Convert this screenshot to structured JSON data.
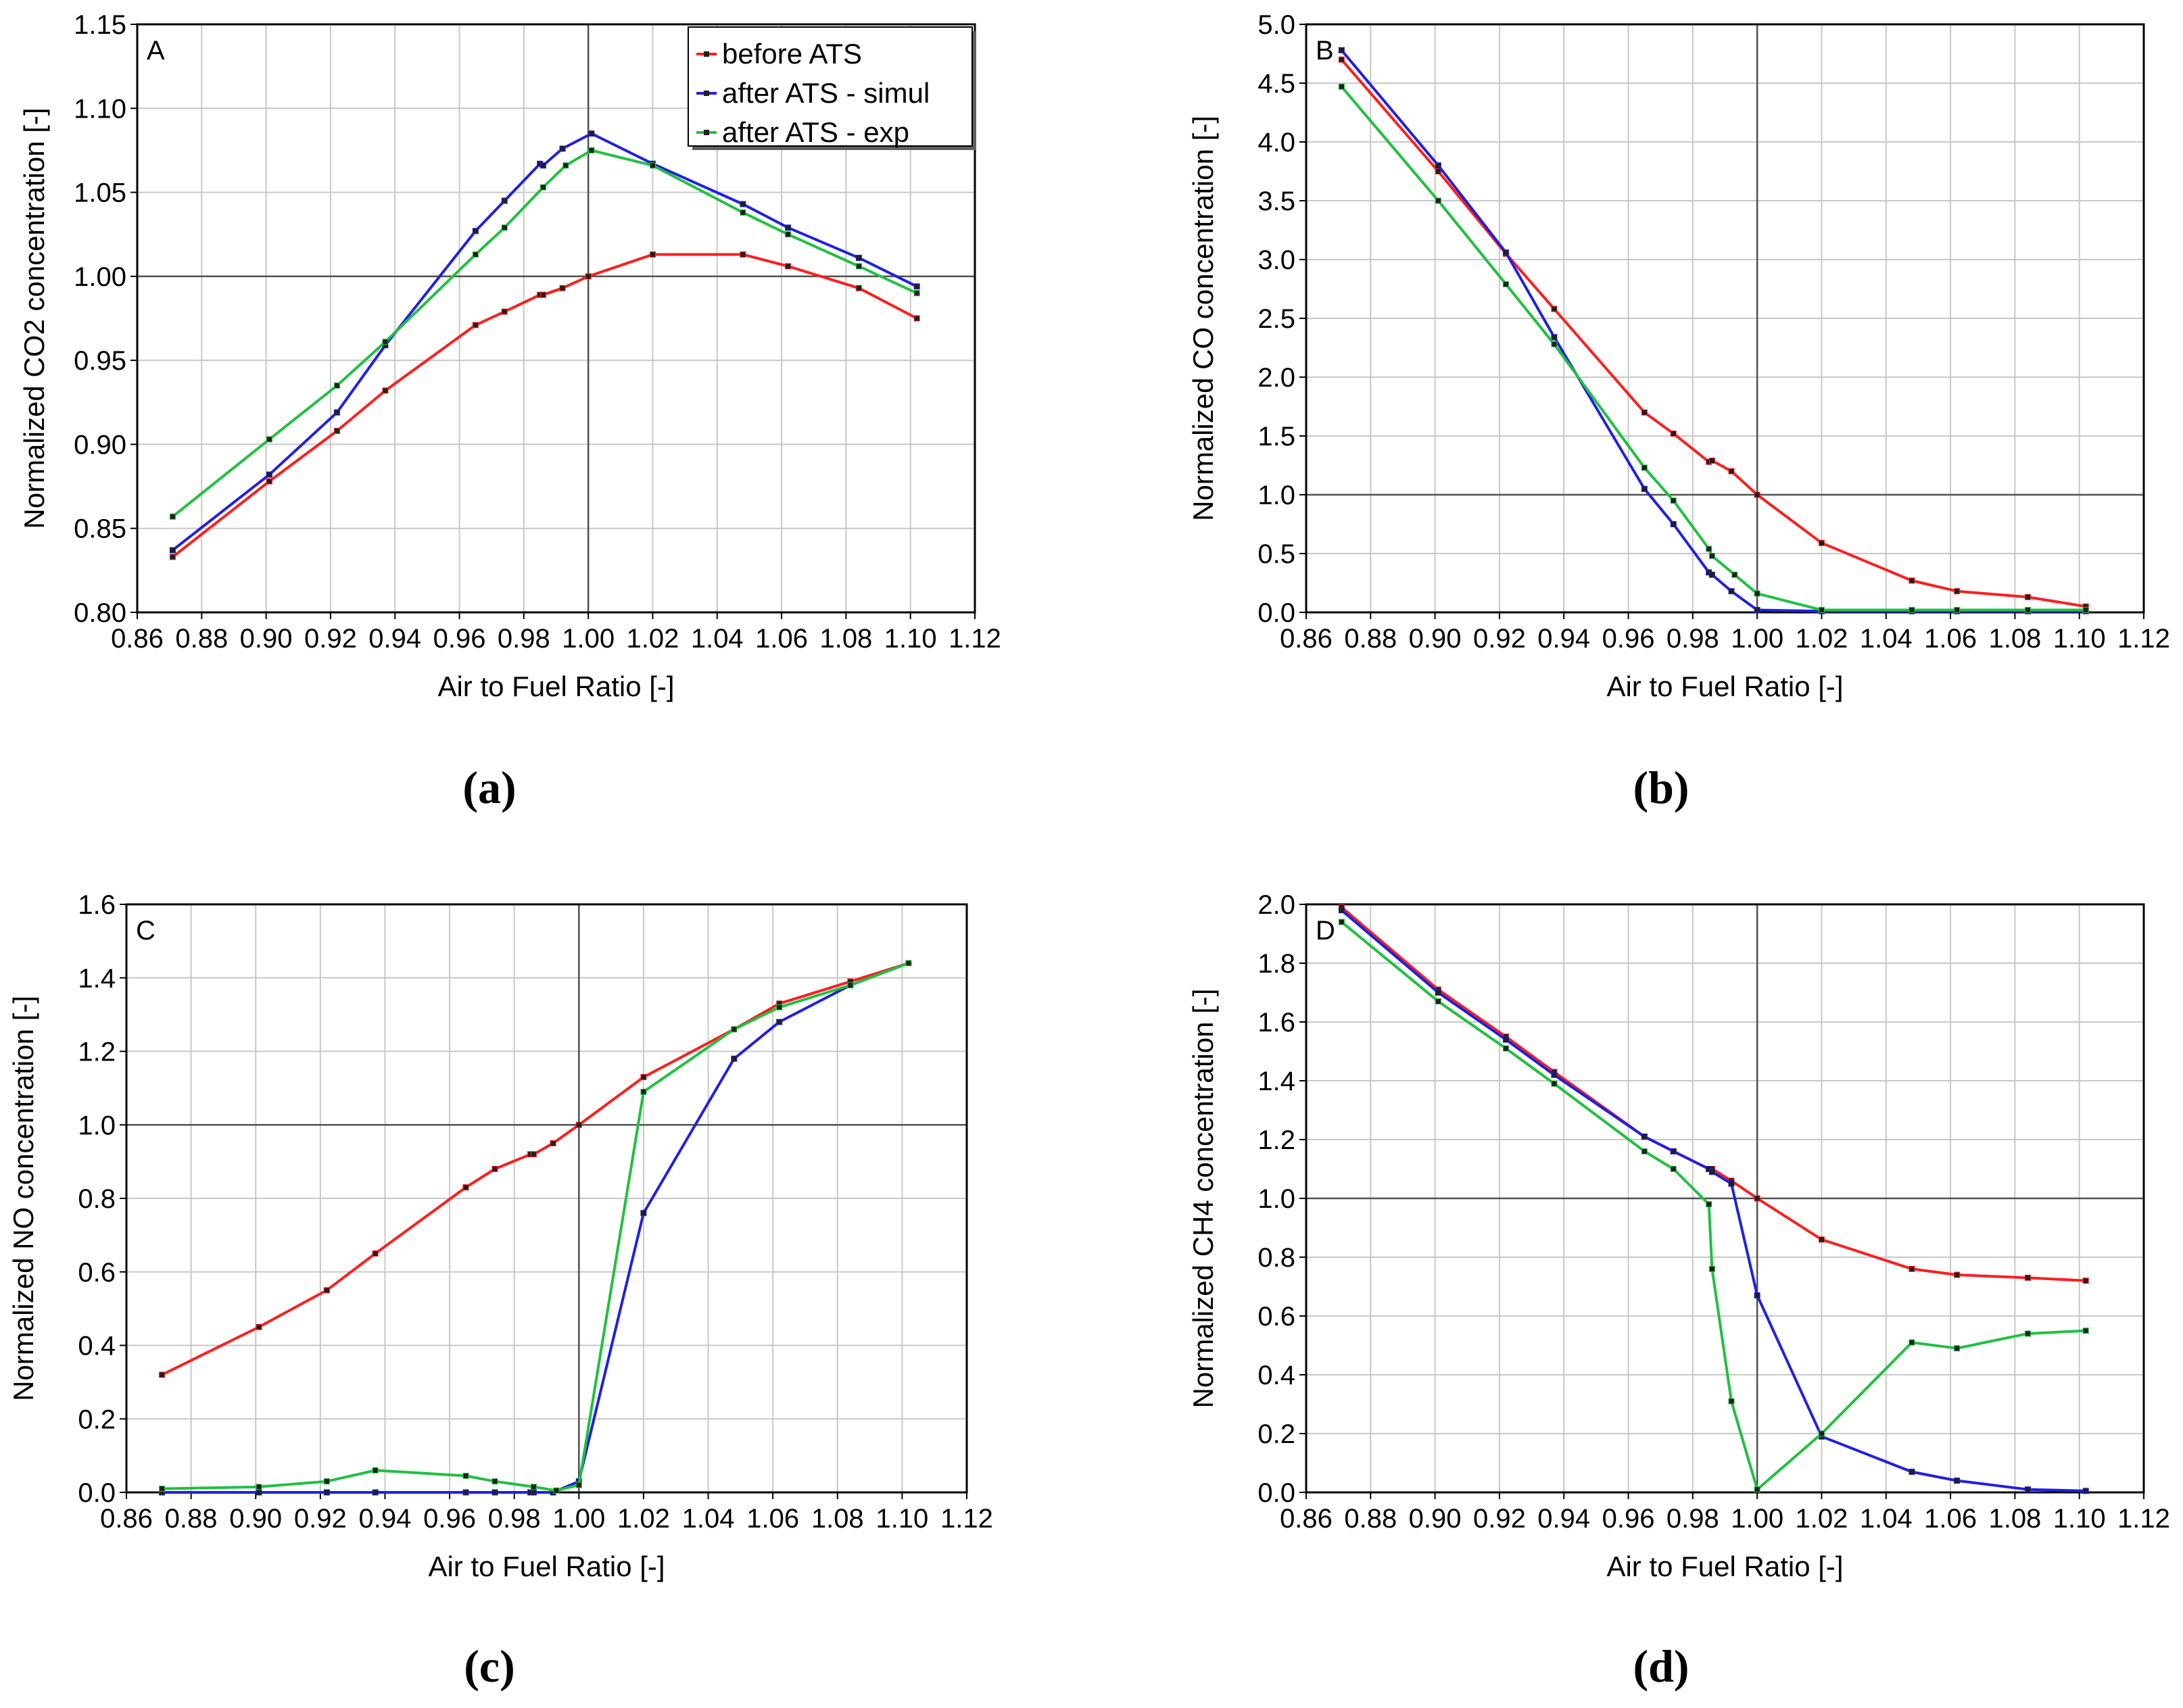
{
  "chart_data": [
    {
      "type": "line",
      "panel_letter": "A",
      "caption": "(a)",
      "xlabel": "Air to Fuel Ratio [-]",
      "ylabel": "Normalized CO2 concentration [-]",
      "xlim": [
        0.86,
        1.12
      ],
      "ylim": [
        0.8,
        1.15
      ],
      "xticks": [
        "0.86",
        "0.88",
        "0.90",
        "0.92",
        "0.94",
        "0.96",
        "0.98",
        "1.00",
        "1.02",
        "1.04",
        "1.06",
        "1.08",
        "1.10",
        "1.12"
      ],
      "yticks": [
        "0.80",
        "0.85",
        "0.90",
        "0.95",
        "1.00",
        "1.05",
        "1.10",
        "1.15"
      ],
      "ref_x": 1.0,
      "ref_y": 1.0,
      "grid": true,
      "legend_position": "top-right",
      "series": [
        {
          "name": "before ATS",
          "color": "#ff1e1e",
          "x": [
            0.871,
            0.901,
            0.922,
            0.937,
            0.965,
            0.974,
            0.985,
            0.986,
            0.992,
            1.0,
            1.02,
            1.048,
            1.062,
            1.084,
            1.102
          ],
          "y": [
            0.833,
            0.878,
            0.908,
            0.932,
            0.971,
            0.979,
            0.989,
            0.989,
            0.993,
            1.0,
            1.013,
            1.013,
            1.006,
            0.993,
            0.975
          ]
        },
        {
          "name": "after ATS - simul",
          "color": "#2020e0",
          "x": [
            0.871,
            0.901,
            0.922,
            0.937,
            0.965,
            0.974,
            0.985,
            0.986,
            0.992,
            1.001,
            1.02,
            1.048,
            1.062,
            1.084,
            1.102
          ],
          "y": [
            0.837,
            0.882,
            0.919,
            0.959,
            1.027,
            1.045,
            1.067,
            1.066,
            1.076,
            1.085,
            1.067,
            1.043,
            1.029,
            1.011,
            0.994
          ]
        },
        {
          "name": "after ATS - exp",
          "color": "#20c040",
          "x": [
            0.871,
            0.901,
            0.922,
            0.937,
            0.965,
            0.974,
            0.986,
            0.993,
            1.001,
            1.02,
            1.048,
            1.062,
            1.084,
            1.102
          ],
          "y": [
            0.857,
            0.903,
            0.935,
            0.961,
            1.013,
            1.029,
            1.053,
            1.066,
            1.075,
            1.066,
            1.038,
            1.025,
            1.006,
            0.99
          ]
        }
      ]
    },
    {
      "type": "line",
      "panel_letter": "B",
      "caption": "(b)",
      "xlabel": "Air to Fuel Ratio [-]",
      "ylabel": "Normalized CO concentration [-]",
      "xlim": [
        0.86,
        1.12
      ],
      "ylim": [
        0.0,
        5.0
      ],
      "xticks": [
        "0.86",
        "0.88",
        "0.90",
        "0.92",
        "0.94",
        "0.96",
        "0.98",
        "1.00",
        "1.02",
        "1.04",
        "1.06",
        "1.08",
        "1.10",
        "1.12"
      ],
      "yticks": [
        "0.0",
        "0.5",
        "1.0",
        "1.5",
        "2.0",
        "2.5",
        "3.0",
        "3.5",
        "4.0",
        "4.5",
        "5.0"
      ],
      "ref_x": 1.0,
      "ref_y": 1.0,
      "grid": true,
      "series": [
        {
          "name": "before ATS",
          "color": "#ff1e1e",
          "x": [
            0.871,
            0.901,
            0.922,
            0.937,
            0.965,
            0.974,
            0.985,
            0.986,
            0.992,
            1.0,
            1.02,
            1.048,
            1.062,
            1.084,
            1.102
          ],
          "y": [
            4.7,
            3.75,
            3.05,
            2.58,
            1.7,
            1.52,
            1.28,
            1.29,
            1.2,
            1.0,
            0.59,
            0.27,
            0.18,
            0.13,
            0.05
          ]
        },
        {
          "name": "after ATS - simul",
          "color": "#2020e0",
          "x": [
            0.871,
            0.901,
            0.922,
            0.937,
            0.965,
            0.974,
            0.985,
            0.986,
            0.992,
            1.0,
            1.02,
            1.048,
            1.062,
            1.084,
            1.102
          ],
          "y": [
            4.78,
            3.8,
            3.06,
            2.34,
            1.05,
            0.75,
            0.34,
            0.32,
            0.18,
            0.02,
            0.01,
            0.01,
            0.01,
            0.01,
            0.01
          ]
        },
        {
          "name": "after ATS - exp",
          "color": "#20c040",
          "x": [
            0.871,
            0.901,
            0.922,
            0.937,
            0.965,
            0.974,
            0.985,
            0.986,
            0.993,
            1.0,
            1.02,
            1.048,
            1.062,
            1.084,
            1.102
          ],
          "y": [
            4.47,
            3.5,
            2.79,
            2.28,
            1.23,
            0.95,
            0.54,
            0.48,
            0.32,
            0.16,
            0.02,
            0.02,
            0.02,
            0.02,
            0.02
          ]
        }
      ]
    },
    {
      "type": "line",
      "panel_letter": "C",
      "caption": "(c)",
      "xlabel": "Air to Fuel Ratio [-]",
      "ylabel": "Normalized NO concentration [-]",
      "xlim": [
        0.86,
        1.12
      ],
      "ylim": [
        0.0,
        1.6
      ],
      "xticks": [
        "0.86",
        "0.88",
        "0.90",
        "0.92",
        "0.94",
        "0.96",
        "0.98",
        "1.00",
        "1.02",
        "1.04",
        "1.06",
        "1.08",
        "1.10",
        "1.12"
      ],
      "yticks": [
        "0.0",
        "0.2",
        "0.4",
        "0.6",
        "0.8",
        "1.0",
        "1.2",
        "1.4",
        "1.6"
      ],
      "ref_x": 1.0,
      "ref_y": 1.0,
      "grid": true,
      "series": [
        {
          "name": "before ATS",
          "color": "#ff1e1e",
          "x": [
            0.871,
            0.901,
            0.922,
            0.937,
            0.965,
            0.974,
            0.985,
            0.986,
            0.992,
            1.0,
            1.02,
            1.048,
            1.062,
            1.084,
            1.102
          ],
          "y": [
            0.32,
            0.45,
            0.55,
            0.65,
            0.83,
            0.88,
            0.92,
            0.92,
            0.95,
            1.0,
            1.13,
            1.26,
            1.33,
            1.39,
            1.44
          ]
        },
        {
          "name": "after ATS - simul",
          "color": "#2020e0",
          "x": [
            0.871,
            0.901,
            0.922,
            0.937,
            0.965,
            0.974,
            0.985,
            0.986,
            0.992,
            1.0,
            1.02,
            1.048,
            1.062,
            1.084,
            1.102
          ],
          "y": [
            0.0,
            0.0,
            0.0,
            0.0,
            0.0,
            0.0,
            0.0,
            0.0,
            0.0,
            0.03,
            0.76,
            1.18,
            1.28,
            1.38,
            1.44
          ]
        },
        {
          "name": "after ATS - exp",
          "color": "#20c040",
          "x": [
            0.871,
            0.901,
            0.922,
            0.937,
            0.965,
            0.974,
            0.986,
            0.993,
            1.0,
            1.02,
            1.048,
            1.062,
            1.084,
            1.102
          ],
          "y": [
            0.01,
            0.015,
            0.03,
            0.06,
            0.045,
            0.03,
            0.015,
            0.005,
            0.02,
            1.09,
            1.26,
            1.32,
            1.38,
            1.44
          ]
        }
      ]
    },
    {
      "type": "line",
      "panel_letter": "D",
      "caption": "(d)",
      "xlabel": "Air to Fuel Ratio [-]",
      "ylabel": "Normalized CH4 concentration [-]",
      "xlim": [
        0.86,
        1.12
      ],
      "ylim": [
        0.0,
        2.0
      ],
      "xticks": [
        "0.86",
        "0.88",
        "0.90",
        "0.92",
        "0.94",
        "0.96",
        "0.98",
        "1.00",
        "1.02",
        "1.04",
        "1.06",
        "1.08",
        "1.10",
        "1.12"
      ],
      "yticks": [
        "0.0",
        "0.2",
        "0.4",
        "0.6",
        "0.8",
        "1.0",
        "1.2",
        "1.4",
        "1.6",
        "1.8",
        "2.0"
      ],
      "ref_x": 1.0,
      "ref_y": 1.0,
      "grid": true,
      "series": [
        {
          "name": "before ATS",
          "color": "#ff1e1e",
          "x": [
            0.871,
            0.901,
            0.922,
            0.937,
            0.965,
            0.974,
            0.985,
            0.986,
            0.992,
            1.0,
            1.02,
            1.048,
            1.062,
            1.084,
            1.102
          ],
          "y": [
            1.99,
            1.71,
            1.55,
            1.43,
            1.21,
            1.16,
            1.1,
            1.1,
            1.06,
            1.0,
            0.86,
            0.76,
            0.74,
            0.73,
            0.72
          ]
        },
        {
          "name": "after ATS - simul",
          "color": "#2020e0",
          "x": [
            0.871,
            0.901,
            0.922,
            0.937,
            0.965,
            0.974,
            0.985,
            0.986,
            0.992,
            1.0,
            1.02,
            1.048,
            1.062,
            1.084,
            1.102
          ],
          "y": [
            1.98,
            1.7,
            1.54,
            1.42,
            1.21,
            1.16,
            1.1,
            1.09,
            1.05,
            0.67,
            0.19,
            0.07,
            0.04,
            0.01,
            0.005
          ]
        },
        {
          "name": "after ATS - exp",
          "color": "#20c040",
          "x": [
            0.871,
            0.901,
            0.922,
            0.937,
            0.965,
            0.974,
            0.985,
            0.986,
            0.992,
            1.0,
            1.02,
            1.048,
            1.062,
            1.084,
            1.102
          ],
          "y": [
            1.94,
            1.67,
            1.51,
            1.39,
            1.16,
            1.1,
            0.98,
            0.76,
            0.31,
            0.01,
            0.2,
            0.51,
            0.49,
            0.54,
            0.55
          ]
        }
      ]
    }
  ]
}
